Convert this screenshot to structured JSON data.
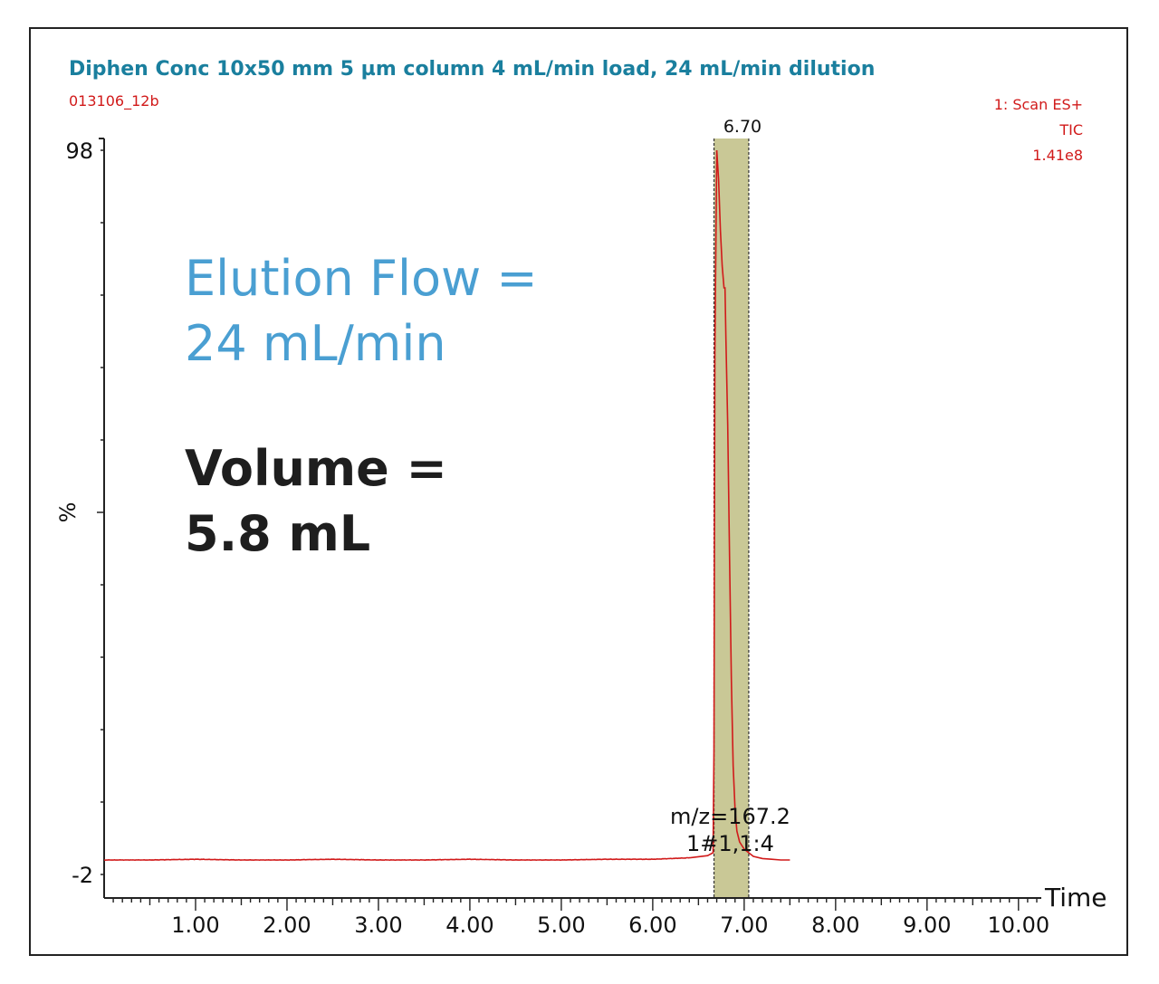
{
  "header": {
    "title": "Diphen Conc 10x50 mm 5 µm column 4 mL/min load, 24 mL/min dilution",
    "run_id": "013106_12b",
    "scan_mode": "1: Scan ES+",
    "trace": "TIC",
    "intensity": "1.41e8"
  },
  "annotations": {
    "elution_line1": "Elution Flow =",
    "elution_line2": "24 mL/min",
    "volume_line1": "Volume =",
    "volume_line2": "5.8 mL",
    "mz_line1": "m/z=167.2",
    "mz_line2": "1#1,1:4"
  },
  "colors": {
    "title": "#1a7f9e",
    "trace": "#d11a1a",
    "elution_text": "#4a9fd2",
    "volume_text": "#1e1e1e",
    "highlight_band": "#c9c896",
    "axis": "#222222"
  },
  "chart_data": {
    "type": "line",
    "title": "Diphen Conc 10x50 mm 5 µm column 4 mL/min load, 24 mL/min dilution",
    "xlabel": "Time",
    "ylabel": "%",
    "xlim": [
      0.0,
      10.2
    ],
    "ylim": [
      -2,
      98
    ],
    "x_ticks": [
      1.0,
      2.0,
      3.0,
      4.0,
      5.0,
      6.0,
      7.0,
      8.0,
      9.0,
      10.0
    ],
    "x_tick_labels": [
      "1.00",
      "2.00",
      "3.00",
      "4.00",
      "5.00",
      "6.00",
      "7.00",
      "8.00",
      "9.00",
      "10.00"
    ],
    "y_tick_labels": [
      {
        "value": 98,
        "label": "98"
      },
      {
        "value": -2,
        "label": "-2"
      }
    ],
    "peak_label": {
      "x": 6.7,
      "label": "6.70"
    },
    "highlight": {
      "x_start": 6.67,
      "x_end": 7.05
    },
    "series": [
      {
        "x": [
          0.0,
          0.5,
          1.0,
          1.5,
          2.0,
          2.5,
          3.0,
          3.5,
          4.0,
          4.5,
          5.0,
          5.5,
          6.0,
          6.4,
          6.6,
          6.66,
          6.67,
          6.68,
          6.7,
          6.72,
          6.74,
          6.76,
          6.78,
          6.79,
          6.8,
          6.82,
          6.84,
          6.86,
          6.88,
          6.9,
          6.92,
          6.95,
          7.0,
          7.05,
          7.1,
          7.2,
          7.3,
          7.4,
          7.5
        ],
        "y": [
          0.0,
          0.0,
          0.1,
          0.0,
          0.0,
          0.1,
          0.0,
          0.0,
          0.1,
          0.0,
          0.0,
          0.1,
          0.1,
          0.3,
          0.6,
          1.0,
          15.0,
          70.0,
          98.0,
          94.0,
          87.0,
          82.0,
          79.0,
          79.0,
          72.0,
          60.0,
          42.0,
          25.0,
          13.0,
          7.0,
          4.0,
          2.5,
          1.5,
          1.0,
          0.5,
          0.2,
          0.1,
          0.0,
          0.0
        ]
      }
    ],
    "grid": false
  }
}
